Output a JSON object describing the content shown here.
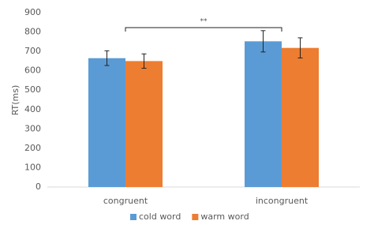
{
  "chart_data": {
    "type": "bar",
    "y_label": "RT(ms)",
    "categories": [
      "congruent",
      "incongruent"
    ],
    "series": [
      {
        "name": "cold word",
        "color": "#5b9bd5",
        "values": [
          665,
          752
        ],
        "errors": [
          38,
          55
        ]
      },
      {
        "name": "warm word",
        "color": "#ed7d31",
        "values": [
          650,
          718
        ],
        "errors": [
          37,
          52
        ]
      }
    ],
    "annotation": "**",
    "ylim": [
      0,
      900
    ],
    "yticks": [
      0,
      100,
      200,
      300,
      400,
      500,
      600,
      700,
      800,
      900
    ],
    "grid": false,
    "legend": "bottom"
  }
}
